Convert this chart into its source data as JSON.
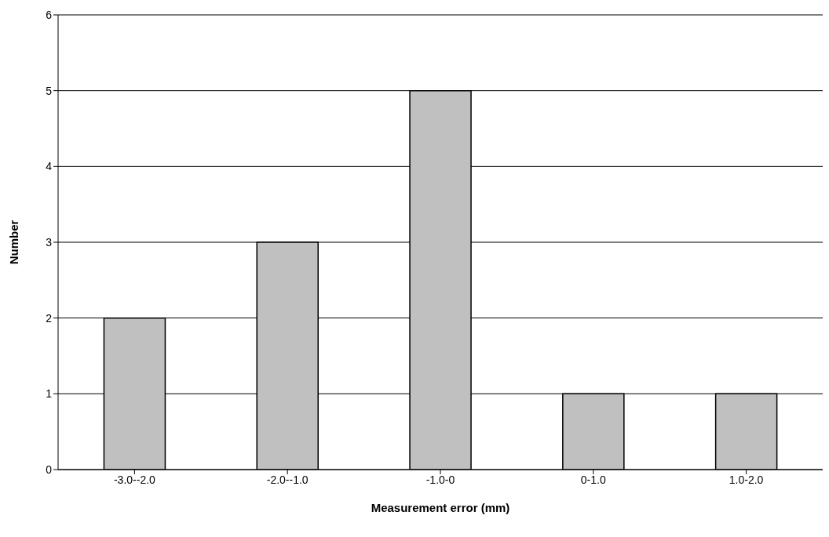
{
  "chart_data": {
    "type": "bar",
    "xlabel": "Measurement error (mm)",
    "ylabel": "Number",
    "categories": [
      "-3.0--2.0",
      "-2.0--1.0",
      "-1.0-0",
      "0-1.0",
      "1.0-2.0"
    ],
    "values": [
      2,
      3,
      5,
      1,
      1
    ],
    "color": "#c0c0c0",
    "ylim": [
      0,
      6
    ],
    "yticks": [
      0,
      1,
      2,
      3,
      4,
      5,
      6
    ],
    "grid": "y"
  }
}
